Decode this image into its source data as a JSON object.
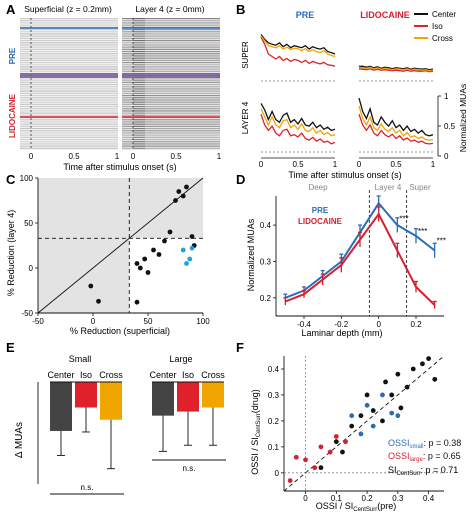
{
  "colors": {
    "center": "#111111",
    "iso": "#e0202a",
    "cross": "#f0a500",
    "pre_blue": "#2a6db5",
    "lido_red": "#d42030",
    "cyan": "#21a3dd",
    "shade": "#e3e3e3",
    "dark_bar": "#444444"
  },
  "panelA": {
    "label": "A",
    "left_title": "Superficial (z = 0.2mm)",
    "right_title": "Layer 4 (z = 0mm)",
    "row_pre": "PRE",
    "row_lido": "LIDOCAINE",
    "xlabel": "Time after stimulus onset (s)",
    "ticks": [
      "0",
      "0.5",
      "1"
    ]
  },
  "panelB": {
    "label": "B",
    "pre_title": "PRE",
    "lido_title": "LIDOCAINE",
    "row_super": "SUPER",
    "row_l4": "LAYER 4",
    "legend": [
      "Center",
      "Iso",
      "Cross"
    ],
    "ylabel": "Normalized MUAs",
    "yticks": [
      "0",
      "0.5",
      "1"
    ],
    "xticks": [
      "0",
      "0.5",
      "1"
    ],
    "xlabel": "Time after stimulus onset (s)"
  },
  "panelC": {
    "label": "C",
    "xlabel": "% Reduction (superficial)",
    "ylabel": "% Reduction (layer 4)",
    "xticks": [
      "-50",
      "0",
      "50",
      "100"
    ],
    "yticks": [
      "-50",
      "0",
      "50",
      "100"
    ]
  },
  "panelD": {
    "label": "D",
    "region_labels": [
      "Deep",
      "Layer 4",
      "Super"
    ],
    "legend_pre": "PRE",
    "legend_lido": "LIDOCAINE",
    "xlabel": "Laminar depth (mm)",
    "ylabel": "Normalized MUAs",
    "xticks": [
      "-0.4",
      "-0.2",
      "0",
      "0.2",
      "0.4"
    ],
    "yticks": [
      "0.2",
      "0.3",
      "0.4"
    ],
    "stars": [
      "***",
      "***",
      "***"
    ]
  },
  "panelE": {
    "label": "E",
    "group_small": "Small",
    "group_large": "Large",
    "bar_labels": [
      "Center",
      "Iso",
      "Cross",
      "Center",
      "Iso",
      "Cross"
    ],
    "ylabel": "Δ MUAs",
    "ns": [
      "n.s.",
      "n.s."
    ]
  },
  "panelF": {
    "label": "F",
    "xlabel_main": "OSSI / SI",
    "xlabel_sub": "CentSurr",
    "xlabel_tail": "(pre)",
    "ylabel_main": "OSSI / SI",
    "ylabel_sub": "CentSurr",
    "ylabel_tail": "(drug)",
    "xticks": [
      "0",
      "0.1",
      "0.2",
      "0.3",
      "0.4"
    ],
    "yticks": [
      "0",
      "0.1",
      "0.2",
      "0.3",
      "0.4"
    ],
    "stat1_main": "OSSI",
    "stat1_sub": "small",
    "stat1_val": ": p = 0.38",
    "stat2_main": "OSSI",
    "stat2_sub": "large",
    "stat2_val": ": p = 0.65",
    "stat3_main": "SI",
    "stat3_sub": "CentSurr",
    "stat3_val": ": p = 0.71"
  },
  "chart_data": [
    {
      "panel": "B",
      "type": "line",
      "x": [
        0,
        0.05,
        0.1,
        0.15,
        0.2,
        0.25,
        0.3,
        0.35,
        0.4,
        0.45,
        0.5,
        0.55,
        0.6,
        0.65,
        0.7,
        0.75,
        0.8,
        0.85,
        0.9,
        0.95,
        1.0
      ],
      "ylim": [
        0,
        1
      ],
      "subplots": [
        {
          "row": "SUPER",
          "col": "PRE",
          "series": [
            {
              "name": "Center",
              "values": [
                0.95,
                0.85,
                0.78,
                0.75,
                0.73,
                0.78,
                0.7,
                0.75,
                0.68,
                0.72,
                0.7,
                0.68,
                0.72,
                0.65,
                0.7,
                0.67,
                0.65,
                0.68,
                0.6,
                0.58,
                0.55
              ]
            },
            {
              "name": "Iso",
              "values": [
                0.9,
                0.75,
                0.55,
                0.5,
                0.45,
                0.5,
                0.42,
                0.46,
                0.4,
                0.44,
                0.42,
                0.38,
                0.42,
                0.36,
                0.4,
                0.37,
                0.35,
                0.38,
                0.33,
                0.32,
                0.3
              ]
            },
            {
              "name": "Cross",
              "values": [
                0.92,
                0.82,
                0.72,
                0.7,
                0.68,
                0.72,
                0.65,
                0.69,
                0.64,
                0.67,
                0.66,
                0.62,
                0.66,
                0.6,
                0.64,
                0.6,
                0.58,
                0.62,
                0.55,
                0.52,
                0.5
              ]
            }
          ]
        },
        {
          "row": "SUPER",
          "col": "LIDOCAINE",
          "series": [
            {
              "name": "Center",
              "values": [
                0.3,
                0.3,
                0.28,
                0.3,
                0.27,
                0.29,
                0.26,
                0.28,
                0.27,
                0.25,
                0.27,
                0.26,
                0.25,
                0.27,
                0.24,
                0.26,
                0.25,
                0.24,
                0.25,
                0.23,
                0.24
              ]
            },
            {
              "name": "Iso",
              "values": [
                0.25,
                0.24,
                0.23,
                0.25,
                0.22,
                0.24,
                0.22,
                0.23,
                0.22,
                0.21,
                0.22,
                0.21,
                0.2,
                0.22,
                0.2,
                0.21,
                0.2,
                0.2,
                0.21,
                0.19,
                0.2
              ]
            },
            {
              "name": "Cross",
              "values": [
                0.28,
                0.27,
                0.26,
                0.28,
                0.25,
                0.27,
                0.24,
                0.26,
                0.25,
                0.23,
                0.25,
                0.24,
                0.23,
                0.25,
                0.22,
                0.24,
                0.23,
                0.22,
                0.23,
                0.21,
                0.22
              ]
            }
          ]
        },
        {
          "row": "LAYER 4",
          "col": "PRE",
          "series": [
            {
              "name": "Center",
              "values": [
                0.9,
                0.78,
                0.6,
                0.75,
                0.6,
                0.55,
                0.68,
                0.72,
                0.55,
                0.6,
                0.52,
                0.62,
                0.5,
                0.48,
                0.55,
                0.45,
                0.5,
                0.42,
                0.46,
                0.4,
                0.42
              ]
            },
            {
              "name": "Iso",
              "values": [
                0.7,
                0.5,
                0.4,
                0.48,
                0.35,
                0.3,
                0.4,
                0.42,
                0.3,
                0.32,
                0.28,
                0.35,
                0.25,
                0.22,
                0.27,
                0.2,
                0.24,
                0.18,
                0.2,
                0.15,
                0.18
              ]
            },
            {
              "name": "Cross",
              "values": [
                0.8,
                0.65,
                0.5,
                0.65,
                0.5,
                0.45,
                0.58,
                0.6,
                0.45,
                0.5,
                0.42,
                0.52,
                0.4,
                0.38,
                0.45,
                0.35,
                0.4,
                0.32,
                0.36,
                0.3,
                0.32
              ]
            }
          ]
        },
        {
          "row": "LAYER 4",
          "col": "LIDOCAINE",
          "series": [
            {
              "name": "Center",
              "values": [
                1.0,
                0.75,
                0.62,
                0.8,
                0.55,
                0.5,
                0.65,
                0.55,
                0.48,
                0.58,
                0.45,
                0.5,
                0.4,
                0.48,
                0.38,
                0.42,
                0.35,
                0.4,
                0.32,
                0.3,
                0.32
              ]
            },
            {
              "name": "Iso",
              "values": [
                0.7,
                0.5,
                0.4,
                0.5,
                0.35,
                0.3,
                0.4,
                0.32,
                0.28,
                0.33,
                0.25,
                0.3,
                0.22,
                0.26,
                0.2,
                0.22,
                0.18,
                0.2,
                0.16,
                0.15,
                0.16
              ]
            },
            {
              "name": "Cross",
              "values": [
                0.85,
                0.62,
                0.5,
                0.65,
                0.45,
                0.4,
                0.52,
                0.42,
                0.38,
                0.45,
                0.35,
                0.4,
                0.3,
                0.36,
                0.28,
                0.3,
                0.25,
                0.28,
                0.23,
                0.22,
                0.23
              ]
            }
          ]
        }
      ]
    },
    {
      "panel": "C",
      "type": "scatter",
      "xlim": [
        -50,
        100
      ],
      "ylim": [
        -50,
        100
      ],
      "dividers": {
        "x": 33,
        "y": 33
      },
      "points_black": [
        [
          -2,
          -20
        ],
        [
          5,
          -37
        ],
        [
          40,
          -38
        ],
        [
          40,
          5
        ],
        [
          43,
          0
        ],
        [
          47,
          10
        ],
        [
          50,
          -5
        ],
        [
          55,
          20
        ],
        [
          60,
          15
        ],
        [
          65,
          30
        ],
        [
          70,
          40
        ],
        [
          75,
          75
        ],
        [
          78,
          85
        ],
        [
          82,
          80
        ],
        [
          85,
          90
        ],
        [
          90,
          35
        ],
        [
          92,
          25
        ]
      ],
      "points_blue": [
        [
          82,
          20
        ],
        [
          90,
          22
        ],
        [
          88,
          10
        ],
        [
          85,
          5
        ]
      ]
    },
    {
      "panel": "D",
      "type": "line",
      "x": [
        -0.5,
        -0.4,
        -0.3,
        -0.2,
        -0.1,
        0,
        0.1,
        0.2,
        0.3
      ],
      "ylim": [
        0.15,
        0.48
      ],
      "xlim": [
        -0.55,
        0.35
      ],
      "series": [
        {
          "name": "PRE",
          "values": [
            0.2,
            0.22,
            0.26,
            0.3,
            0.38,
            0.46,
            0.4,
            0.37,
            0.33
          ],
          "err": [
            0.01,
            0.01,
            0.015,
            0.02,
            0.02,
            0.02,
            0.02,
            0.02,
            0.02
          ]
        },
        {
          "name": "LIDOCAINE",
          "values": [
            0.19,
            0.21,
            0.25,
            0.29,
            0.36,
            0.43,
            0.33,
            0.23,
            0.18
          ],
          "err": [
            0.01,
            0.01,
            0.015,
            0.02,
            0.02,
            0.02,
            0.02,
            0.015,
            0.01
          ]
        }
      ],
      "vlines": [
        -0.05,
        0.15
      ]
    },
    {
      "panel": "E",
      "type": "bar",
      "groups": [
        "Small",
        "Large"
      ],
      "categories": [
        "Center",
        "Iso",
        "Cross"
      ],
      "series": [
        {
          "group": "Small",
          "values": [
            -0.048,
            -0.025,
            -0.037
          ],
          "err": [
            0.024,
            0.024,
            0.048
          ]
        },
        {
          "group": "Large",
          "values": [
            -0.033,
            -0.029,
            -0.025
          ],
          "err": [
            0.035,
            0.033,
            0.037
          ]
        }
      ],
      "ylim": [
        -0.1,
        0
      ]
    },
    {
      "panel": "F",
      "type": "scatter",
      "xlim": [
        -0.07,
        0.45
      ],
      "ylim": [
        -0.07,
        0.45
      ],
      "points_black": [
        [
          0.05,
          0.02
        ],
        [
          0.1,
          0.12
        ],
        [
          0.15,
          0.18
        ],
        [
          0.18,
          0.22
        ],
        [
          0.2,
          0.3
        ],
        [
          0.22,
          0.24
        ],
        [
          0.25,
          0.2
        ],
        [
          0.28,
          0.3
        ],
        [
          0.3,
          0.38
        ],
        [
          0.33,
          0.33
        ],
        [
          0.35,
          0.4
        ],
        [
          0.38,
          0.42
        ],
        [
          0.4,
          0.44
        ],
        [
          0.42,
          0.36
        ],
        [
          0.26,
          0.35
        ],
        [
          0.31,
          0.25
        ],
        [
          0.12,
          0.08
        ]
      ],
      "points_blue": [
        [
          0.15,
          0.22
        ],
        [
          0.2,
          0.26
        ],
        [
          0.22,
          0.18
        ],
        [
          0.25,
          0.3
        ],
        [
          0.28,
          0.23
        ],
        [
          0.3,
          0.22
        ],
        [
          0.18,
          0.15
        ]
      ],
      "points_red": [
        [
          -0.05,
          -0.03
        ],
        [
          -0.03,
          0.06
        ],
        [
          0.0,
          0.05
        ],
        [
          0.05,
          0.1
        ],
        [
          0.08,
          0.08
        ],
        [
          0.1,
          0.14
        ],
        [
          0.13,
          0.12
        ],
        [
          0.03,
          0.02
        ]
      ]
    }
  ]
}
